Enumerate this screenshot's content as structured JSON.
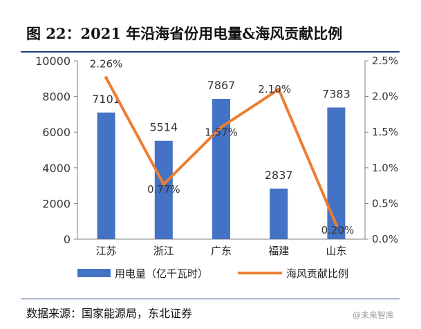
{
  "figure_title": "图 22：2021 年沿海省份用电量&海风贡献比例",
  "source": "数据来源：国家能源局，东北证券",
  "watermark": "@未来智库",
  "colors": {
    "bar": "#4472c4",
    "line": "#ed7d31",
    "rule": "#1f3d7a"
  },
  "chart_data": {
    "type": "bar",
    "categories": [
      "江苏",
      "浙江",
      "广东",
      "福建",
      "山东"
    ],
    "series": [
      {
        "name": "用电量（亿千瓦时）",
        "type": "bar",
        "axis": "left",
        "values": [
          7101,
          5514,
          7867,
          2837,
          7383
        ],
        "labels": [
          "7101",
          "5514",
          "7867",
          "2837",
          "7383"
        ]
      },
      {
        "name": "海风贡献比例",
        "type": "line",
        "axis": "right",
        "values": [
          2.26,
          0.77,
          1.57,
          2.1,
          0.2
        ],
        "labels": [
          "2.26%",
          "0.77%",
          "1.57%",
          "2.10%",
          "0.20%"
        ]
      }
    ],
    "y_left": {
      "min": 0,
      "max": 10000,
      "ticks": [
        "0",
        "2000",
        "4000",
        "6000",
        "8000",
        "10000"
      ]
    },
    "y_right": {
      "min": 0,
      "max": 2.5,
      "ticks": [
        "0.0%",
        "0.5%",
        "1.0%",
        "1.5%",
        "2.0%",
        "2.5%"
      ]
    },
    "grid": false,
    "legend_position": "bottom"
  }
}
